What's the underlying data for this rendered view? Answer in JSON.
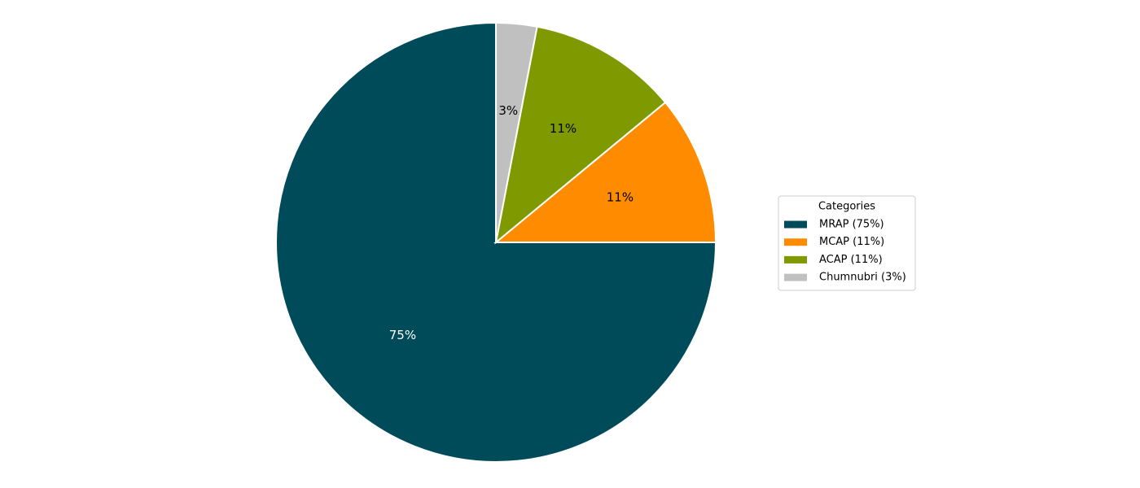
{
  "chart_data": {
    "type": "pie",
    "categories": [
      "MRAP (75%)",
      "MCAP (11%)",
      "ACAP (11%)",
      "Chumnubri (3%)"
    ],
    "values": [
      75,
      11,
      11,
      3
    ],
    "value_labels": [
      "75%",
      "11%",
      "11%",
      "3%"
    ],
    "colors": [
      "#004b5a",
      "#ff8c00",
      "#7f9900",
      "#c0c0c0"
    ],
    "start_angle": 90,
    "counterclock": true,
    "legend_title": "Categories",
    "legend_position": "right"
  }
}
